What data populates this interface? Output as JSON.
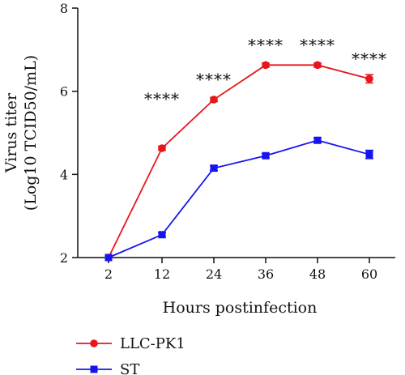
{
  "chart_data": {
    "type": "line",
    "xlabel": "Hours postinfection",
    "ylabel": [
      "Virus titer",
      "(Log10 TCID50/mL)"
    ],
    "ylim": [
      2,
      8
    ],
    "yticks": [
      2,
      4,
      6,
      8
    ],
    "x": [
      2,
      12,
      24,
      36,
      48,
      60
    ],
    "series": [
      {
        "name": "LLC-PK1",
        "color": "#e8161b",
        "marker": "circle",
        "values": [
          2.0,
          4.63,
          5.8,
          6.63,
          6.63,
          6.3
        ],
        "errors": [
          0.0,
          0.05,
          0.05,
          0.05,
          0.05,
          0.1
        ]
      },
      {
        "name": "ST",
        "color": "#1714ee",
        "marker": "square",
        "values": [
          2.0,
          2.55,
          4.15,
          4.45,
          4.82,
          4.48
        ],
        "errors": [
          0.0,
          0.05,
          0.06,
          0.05,
          0.06,
          0.1
        ]
      }
    ],
    "annotations": [
      "",
      "****",
      "****",
      "****",
      "****",
      "****"
    ],
    "legend_position": "bottom-left",
    "grid": false
  }
}
